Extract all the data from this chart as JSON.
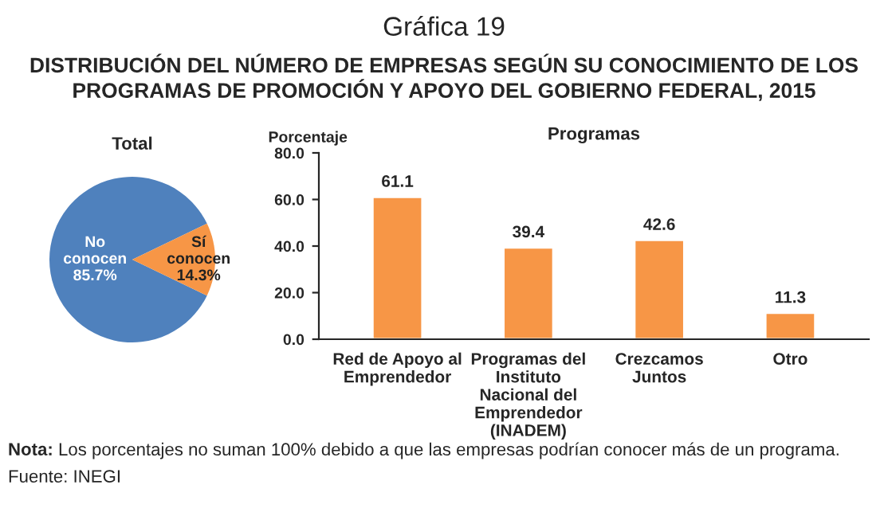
{
  "chart_data": [
    {
      "type": "other",
      "title": "Gráfica 19",
      "subtitle": "DISTRIBUCIÓN DEL NÚMERO DE EMPRESAS SEGÚN SU CONOCIMIENTO DE LOS PROGRAMAS DE PROMOCIÓN Y APOYO DEL GOBIERNO FEDERAL, 2015",
      "annotations": [
        "Nota: Los porcentajes no suman 100% debido a que las empresas podrían conocer más de un programa.",
        "Fuente: INEGI"
      ]
    },
    {
      "type": "pie",
      "title": "Total",
      "categories": [
        "No conocen",
        "Sí conocen"
      ],
      "values": [
        85.7,
        14.3
      ],
      "colors": [
        "#4f81bd",
        "#f79646"
      ],
      "value_labels": [
        "85.7%",
        "14.3%"
      ]
    },
    {
      "type": "bar",
      "title": "Programas",
      "ylabel": "Porcentaje",
      "categories": [
        "Red de Apoyo al\nEmprendedor",
        "Programas del\nInstituto\nNacional del\nEmprendedor\n(INADEM)",
        "Crezcamos\nJuntos",
        "Otro"
      ],
      "values": [
        61.1,
        39.4,
        42.6,
        11.3
      ],
      "color": "#f79646",
      "data_labels": true,
      "ylim": [
        0,
        80
      ],
      "yticks": [
        {
          "value": 0,
          "label": "0.0"
        },
        {
          "value": 20,
          "label": "20.0"
        },
        {
          "value": 40,
          "label": "40.0"
        },
        {
          "value": 60,
          "label": "60.0"
        },
        {
          "value": 80,
          "label": "80.0"
        }
      ],
      "grid": false
    }
  ]
}
